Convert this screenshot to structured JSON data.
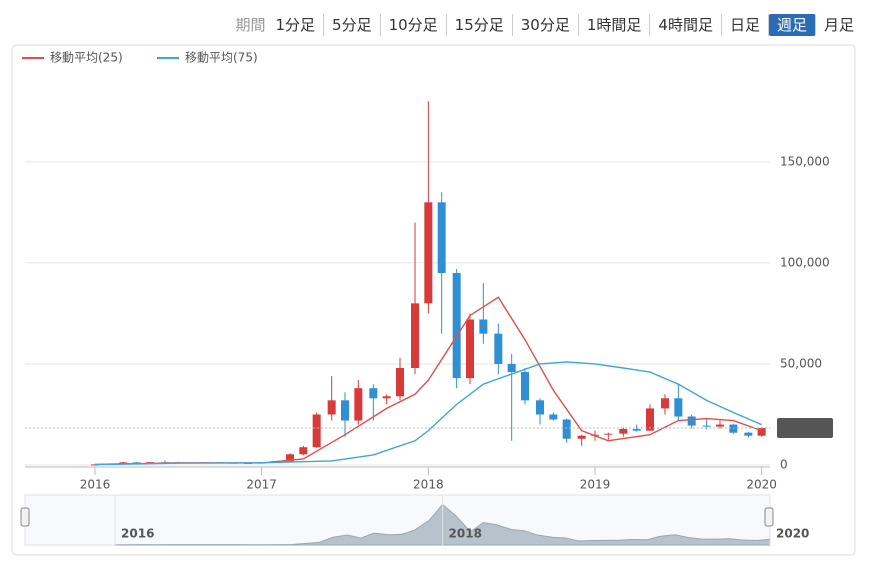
{
  "toolbar": {
    "label": "期間",
    "periods": [
      "1分足",
      "5分足",
      "10分足",
      "15分足",
      "30分足",
      "1時間足",
      "4時間足",
      "日足",
      "週足",
      "月足"
    ],
    "active_index": 8
  },
  "chart_data": {
    "type": "candlestick",
    "x": [
      2016.0,
      2016.08,
      2016.17,
      2016.25,
      2016.33,
      2016.42,
      2016.5,
      2016.58,
      2016.67,
      2016.75,
      2016.83,
      2016.92,
      2017.0,
      2017.08,
      2017.17,
      2017.25,
      2017.33,
      2017.42,
      2017.5,
      2017.58,
      2017.67,
      2017.75,
      2017.83,
      2017.92,
      2018.0,
      2018.08,
      2018.17,
      2018.25,
      2018.33,
      2018.42,
      2018.5,
      2018.58,
      2018.67,
      2018.75,
      2018.83,
      2018.92,
      2019.0,
      2019.08,
      2019.17,
      2019.25,
      2019.33,
      2019.42,
      2019.5,
      2019.58,
      2019.67,
      2019.75,
      2019.83,
      2019.92,
      2020.0
    ],
    "open": [
      120,
      280,
      700,
      1300,
      1000,
      1400,
      1300,
      1250,
      1150,
      1350,
      1150,
      1000,
      900,
      1200,
      1800,
      5300,
      8800,
      25000,
      32000,
      22000,
      38000,
      33000,
      34000,
      48000,
      80000,
      130000,
      95000,
      43000,
      72000,
      65000,
      50000,
      46000,
      32000,
      25000,
      22500,
      13000,
      14500,
      15000,
      15500,
      17800,
      17000,
      28000,
      33000,
      24000,
      19500,
      19000,
      20000,
      16000,
      14500
    ],
    "high": [
      300,
      800,
      1500,
      1400,
      1500,
      2400,
      1600,
      1300,
      1400,
      1450,
      1200,
      1100,
      1300,
      1900,
      5800,
      9500,
      26000,
      44000,
      36000,
      42000,
      40000,
      35000,
      53000,
      120000,
      180000,
      135000,
      97000,
      75000,
      90000,
      70000,
      55000,
      48000,
      33000,
      26000,
      23000,
      15000,
      17000,
      16000,
      18500,
      20000,
      30000,
      35000,
      40000,
      25000,
      23000,
      22000,
      20500,
      16500,
      18800
    ],
    "low": [
      110,
      270,
      650,
      900,
      950,
      1300,
      900,
      1000,
      1100,
      1100,
      900,
      700,
      850,
      1100,
      1700,
      4800,
      8500,
      22000,
      14000,
      20000,
      22000,
      30000,
      32000,
      45000,
      75000,
      65000,
      38000,
      40000,
      60000,
      45000,
      12000,
      30000,
      20000,
      22000,
      11000,
      9500,
      12000,
      12500,
      14000,
      16500,
      16800,
      25000,
      22000,
      18000,
      17500,
      18000,
      15500,
      13500,
      14000
    ],
    "close": [
      280,
      700,
      1300,
      1000,
      1400,
      1300,
      1250,
      1150,
      1350,
      1150,
      1000,
      900,
      1200,
      1800,
      5300,
      8800,
      25000,
      32000,
      22000,
      38000,
      33000,
      34000,
      48000,
      80000,
      130000,
      95000,
      43000,
      72000,
      65000,
      50000,
      46000,
      32000,
      25000,
      22500,
      13000,
      14500,
      15000,
      15500,
      17800,
      17000,
      28000,
      33000,
      24000,
      19500,
      19000,
      20000,
      16000,
      14500,
      18284
    ],
    "up_color": "#d83a3a",
    "down_color": "#2f8fd5",
    "lines": [
      {
        "name": "移動平均(25)",
        "color": "#e0504a",
        "x": [
          2016.0,
          2016.5,
          2017.0,
          2017.25,
          2017.5,
          2017.75,
          2017.92,
          2018.0,
          2018.25,
          2018.42,
          2018.58,
          2018.75,
          2018.92,
          2019.08,
          2019.33,
          2019.5,
          2019.67,
          2019.83,
          2020.0
        ],
        "values": [
          300,
          1100,
          1000,
          3000,
          15000,
          28000,
          35000,
          42000,
          74000,
          83000,
          62000,
          37000,
          17000,
          12000,
          15000,
          22000,
          23000,
          22000,
          17000
        ]
      },
      {
        "name": "移動平均(75)",
        "color": "#3fa6d6",
        "x": [
          2016.0,
          2016.5,
          2017.0,
          2017.42,
          2017.67,
          2017.92,
          2018.0,
          2018.17,
          2018.33,
          2018.5,
          2018.67,
          2018.83,
          2019.0,
          2019.17,
          2019.33,
          2019.5,
          2019.67,
          2019.83,
          2020.0
        ],
        "values": [
          200,
          900,
          1100,
          2000,
          5000,
          12000,
          17000,
          30000,
          40000,
          45000,
          50000,
          51000,
          50000,
          48000,
          46000,
          40000,
          32000,
          26000,
          20000
        ]
      }
    ],
    "xlim": [
      2015.58,
      2020.05
    ],
    "xticks": [
      2016,
      2017,
      2018,
      2019,
      2020
    ],
    "ylim": [
      0,
      193000
    ],
    "yticks": [
      0,
      {
        "value": 50000,
        "label": "50,000"
      },
      {
        "value": 100000,
        "label": "100,000"
      },
      {
        "value": 150000,
        "label": "150,000"
      }
    ],
    "grid": true,
    "last_price": {
      "value": 18284,
      "label": "18,284"
    },
    "navigator": {
      "xlim": [
        2015.45,
        2020.0
      ],
      "xticks": [
        2016,
        2018,
        2020
      ]
    }
  }
}
